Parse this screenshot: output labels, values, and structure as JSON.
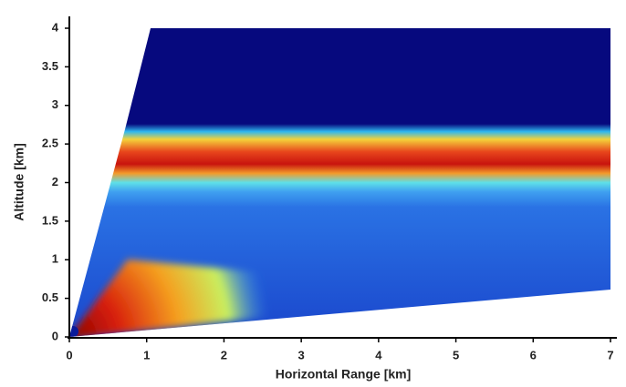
{
  "chart_data": {
    "type": "heatmap",
    "x_label": "Horizontal Range [km]",
    "y_label": "Altitude [km]",
    "xlim": [
      0,
      7
    ],
    "ylim": [
      0,
      4
    ],
    "xticks": [
      0,
      1,
      2,
      3,
      4,
      5,
      6,
      7
    ],
    "yticks": [
      0,
      0.5,
      1,
      1.5,
      2,
      2.5,
      3,
      3.5,
      4
    ]
  }
}
